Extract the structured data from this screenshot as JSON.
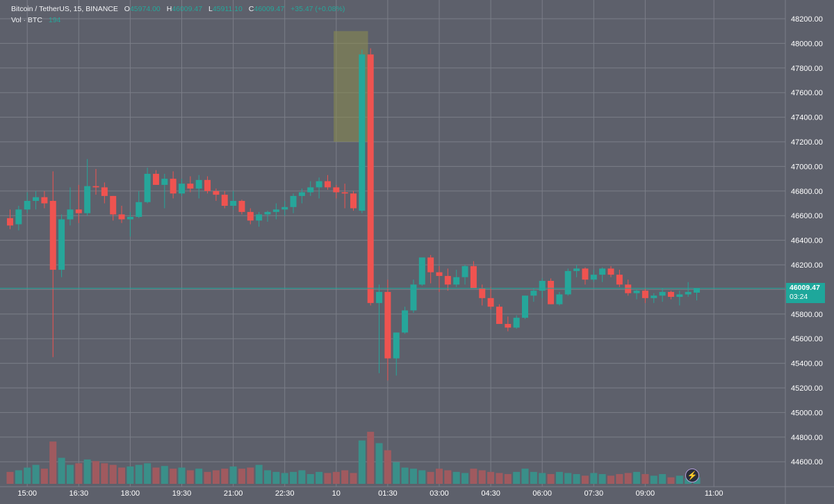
{
  "legend": {
    "symbol": "Bitcoin / TetherUS, 15, BINANCE",
    "o_label": "O",
    "o_value": "45974.00",
    "h_label": "H",
    "h_value": "46009.47",
    "l_label": "L",
    "l_value": "45911.10",
    "c_label": "C",
    "c_value": "46009.47",
    "change": "+35.47 (+0.08%)",
    "vol_label": "Vol · BTC",
    "vol_value": "194"
  },
  "price_tag": {
    "price": "46009.47",
    "countdown": "03:24"
  },
  "colors": {
    "background": "#5d606b",
    "grid": "#7b7e88",
    "up": "#26a69a",
    "down": "#ef5350",
    "up_volume": "#3a8f89",
    "down_volume": "#a05a5f",
    "highlight": "#8a8c4e",
    "axis_text": "#ffffff",
    "last_price_line": "#1ea79b"
  },
  "icons": {
    "bolt": "lightning-icon"
  },
  "chart_data": {
    "type": "candlestick",
    "title": "Bitcoin / TetherUS, 15, BINANCE",
    "ylim": [
      44400,
      48300
    ],
    "y_ticks": [
      "48200.00",
      "48000.00",
      "47800.00",
      "47600.00",
      "47400.00",
      "47200.00",
      "47000.00",
      "46800.00",
      "46600.00",
      "46400.00",
      "46200.00",
      "46000.00",
      "45800.00",
      "45600.00",
      "45400.00",
      "45200.00",
      "45000.00",
      "44800.00",
      "44600.00"
    ],
    "x_ticks": [
      {
        "label": "15:00",
        "bar": 2
      },
      {
        "label": "16:30",
        "bar": 8
      },
      {
        "label": "18:00",
        "bar": 14
      },
      {
        "label": "19:30",
        "bar": 20
      },
      {
        "label": "21:00",
        "bar": 26
      },
      {
        "label": "22:30",
        "bar": 32
      },
      {
        "label": "10",
        "bar": 38
      },
      {
        "label": "01:30",
        "bar": 44
      },
      {
        "label": "03:00",
        "bar": 50
      },
      {
        "label": "04:30",
        "bar": 56
      },
      {
        "label": "06:00",
        "bar": 62
      },
      {
        "label": "07:30",
        "bar": 68
      },
      {
        "label": "09:00",
        "bar": 74
      },
      {
        "label": "11:00",
        "bar": 82
      }
    ],
    "grid": true,
    "last_price": 46009.47,
    "highlight_bars": [
      37.7,
      41.7
    ],
    "highlight_price": [
      47200,
      48100
    ],
    "candles": [
      [
        46580,
        46650,
        46490,
        46520
      ],
      [
        46530,
        46680,
        46480,
        46650
      ],
      [
        46650,
        46790,
        46620,
        46720
      ],
      [
        46720,
        46800,
        46650,
        46750
      ],
      [
        46750,
        46800,
        46660,
        46700
      ],
      [
        46720,
        46960,
        45450,
        46160
      ],
      [
        46160,
        46610,
        46100,
        46570
      ],
      [
        46570,
        46830,
        46520,
        46650
      ],
      [
        46650,
        46850,
        46540,
        46620
      ],
      [
        46620,
        47060,
        46600,
        46840
      ],
      [
        46840,
        46980,
        46770,
        46830
      ],
      [
        46830,
        46870,
        46700,
        46760
      ],
      [
        46760,
        46760,
        46560,
        46610
      ],
      [
        46610,
        46680,
        46540,
        46570
      ],
      [
        46570,
        46630,
        46430,
        46590
      ],
      [
        46590,
        46800,
        46580,
        46710
      ],
      [
        46710,
        46990,
        46700,
        46940
      ],
      [
        46940,
        46970,
        46850,
        46850
      ],
      [
        46850,
        46940,
        46660,
        46900
      ],
      [
        46900,
        46960,
        46740,
        46780
      ],
      [
        46780,
        46900,
        46760,
        46860
      ],
      [
        46860,
        46920,
        46790,
        46820
      ],
      [
        46820,
        46930,
        46740,
        46890
      ],
      [
        46890,
        46920,
        46780,
        46800
      ],
      [
        46800,
        46820,
        46720,
        46770
      ],
      [
        46770,
        46800,
        46660,
        46680
      ],
      [
        46680,
        46800,
        46650,
        46720
      ],
      [
        46720,
        46730,
        46610,
        46630
      ],
      [
        46630,
        46660,
        46530,
        46560
      ],
      [
        46560,
        46630,
        46510,
        46610
      ],
      [
        46610,
        46640,
        46550,
        46630
      ],
      [
        46630,
        46700,
        46570,
        46650
      ],
      [
        46650,
        46720,
        46600,
        46670
      ],
      [
        46670,
        46780,
        46620,
        46760
      ],
      [
        46760,
        46820,
        46700,
        46790
      ],
      [
        46790,
        46880,
        46760,
        46830
      ],
      [
        46830,
        46910,
        46740,
        46880
      ],
      [
        46880,
        46930,
        46810,
        46830
      ],
      [
        46830,
        46850,
        46740,
        46790
      ],
      [
        46790,
        46860,
        46660,
        46780
      ],
      [
        46780,
        46800,
        46640,
        46660
      ],
      [
        46640,
        47950,
        46620,
        47910
      ],
      [
        47910,
        47960,
        45870,
        45890
      ],
      [
        45890,
        46040,
        45320,
        45980
      ],
      [
        45980,
        46080,
        45260,
        45440
      ],
      [
        45440,
        45650,
        45300,
        45650
      ],
      [
        45650,
        45860,
        45640,
        45830
      ],
      [
        45830,
        46080,
        45810,
        46040
      ],
      [
        46040,
        46260,
        46030,
        46260
      ],
      [
        46260,
        46280,
        46050,
        46140
      ],
      [
        46140,
        46190,
        45980,
        46110
      ],
      [
        46110,
        46170,
        45990,
        46040
      ],
      [
        46040,
        46160,
        46020,
        46100
      ],
      [
        46100,
        46200,
        46040,
        46190
      ],
      [
        46190,
        46230,
        46020,
        46010
      ],
      [
        46010,
        46040,
        45870,
        45930
      ],
      [
        45930,
        46020,
        45840,
        45860
      ],
      [
        45860,
        45880,
        45720,
        45720
      ],
      [
        45720,
        45780,
        45660,
        45690
      ],
      [
        45690,
        45790,
        45680,
        45770
      ],
      [
        45770,
        45950,
        45760,
        45950
      ],
      [
        45950,
        46010,
        45900,
        45990
      ],
      [
        45990,
        46090,
        45930,
        46070
      ],
      [
        46070,
        46090,
        45880,
        45880
      ],
      [
        45880,
        45980,
        45870,
        45960
      ],
      [
        45960,
        46170,
        45950,
        46150
      ],
      [
        46150,
        46200,
        46100,
        46170
      ],
      [
        46170,
        46180,
        46040,
        46080
      ],
      [
        46080,
        46160,
        46060,
        46120
      ],
      [
        46120,
        46180,
        46060,
        46170
      ],
      [
        46170,
        46190,
        46100,
        46120
      ],
      [
        46120,
        46160,
        46020,
        46040
      ],
      [
        46040,
        46080,
        45950,
        45970
      ],
      [
        45970,
        46000,
        45920,
        45990
      ],
      [
        45990,
        46010,
        45890,
        45930
      ],
      [
        45930,
        45970,
        45890,
        45950
      ],
      [
        45950,
        46010,
        45900,
        45980
      ],
      [
        45980,
        45990,
        45920,
        45940
      ],
      [
        45940,
        45990,
        45870,
        45960
      ],
      [
        45960,
        46060,
        45940,
        45980
      ],
      [
        45974,
        46009.47,
        45911.1,
        46009.47
      ]
    ],
    "volumes": [
      22,
      25,
      30,
      35,
      28,
      78,
      48,
      35,
      38,
      45,
      42,
      38,
      35,
      30,
      32,
      35,
      38,
      30,
      33,
      28,
      30,
      25,
      28,
      22,
      25,
      28,
      32,
      28,
      30,
      35,
      25,
      22,
      20,
      22,
      25,
      18,
      22,
      20,
      22,
      25,
      20,
      80,
      96,
      75,
      62,
      40,
      30,
      28,
      25,
      22,
      28,
      25,
      22,
      20,
      28,
      25,
      22,
      20,
      18,
      22,
      28,
      22,
      20,
      18,
      22,
      20,
      18,
      15,
      20,
      18,
      15,
      18,
      20,
      22,
      18,
      15,
      18,
      12,
      15,
      10,
      12
    ],
    "volume_ylim": [
      0,
      180
    ]
  }
}
